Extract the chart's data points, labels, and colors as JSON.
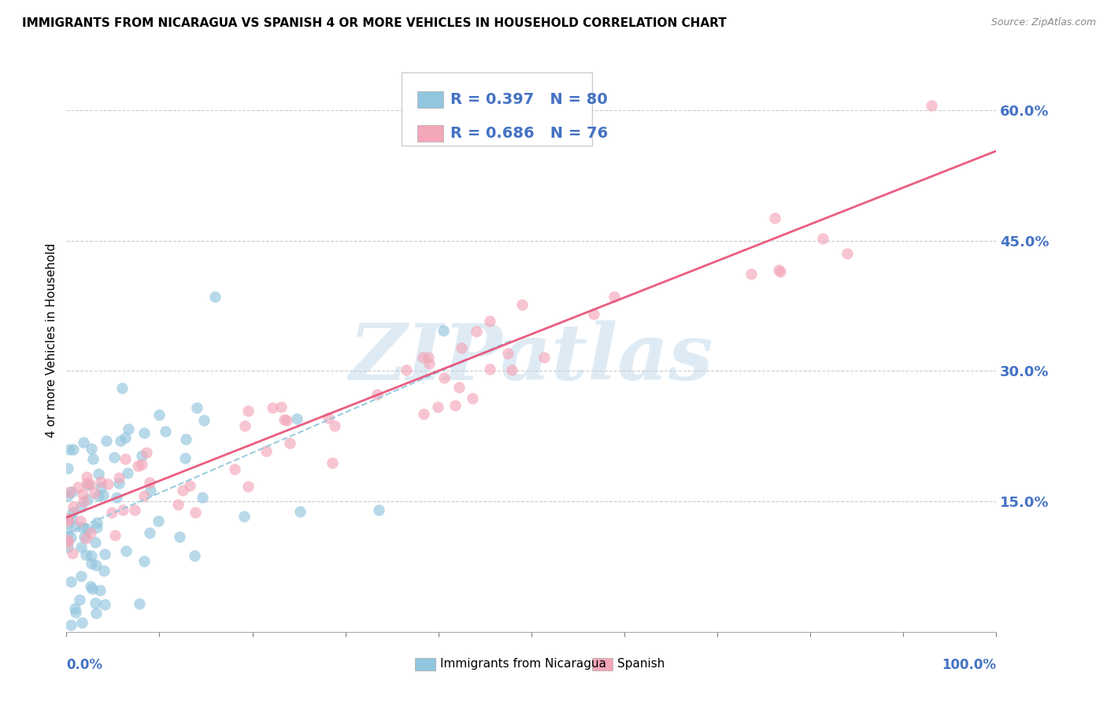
{
  "title": "IMMIGRANTS FROM NICARAGUA VS SPANISH 4 OR MORE VEHICLES IN HOUSEHOLD CORRELATION CHART",
  "source": "Source: ZipAtlas.com",
  "ylabel": "4 or more Vehicles in Household",
  "legend_text_color": "#4472c4",
  "blue_color": "#92c5de",
  "pink_color": "#f4a7b9",
  "blue_line_color": "#92c5de",
  "pink_line_color": "#e8547a",
  "watermark": "ZIPatlas",
  "watermark_color": "#c6dbef",
  "ytick_color": "#4472c4",
  "xlim": [
    0.0,
    1.0
  ],
  "ylim": [
    0.0,
    0.67
  ],
  "yticks": [
    0.0,
    0.15,
    0.3,
    0.45,
    0.6
  ],
  "ytick_labels": [
    "",
    "15.0%",
    "30.0%",
    "45.0%",
    "60.0%"
  ],
  "legend_blue_label": "R = 0.397   N = 80",
  "legend_pink_label": "R = 0.686   N = 76",
  "bottom_legend_blue": "Immigrants from Nicaragua",
  "bottom_legend_pink": "Spanish"
}
